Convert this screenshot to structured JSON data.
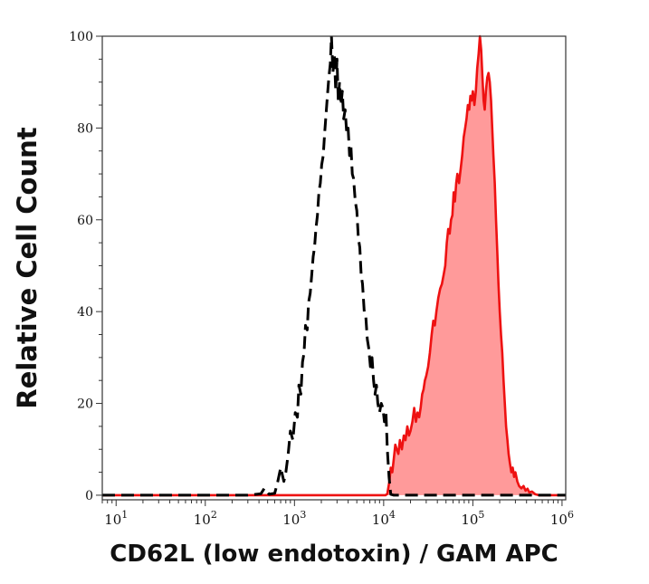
{
  "chart_data": {
    "type": "area",
    "xlabel": "CD62L (low endotoxin) / GAM APC",
    "ylabel": "Relative Cell Count",
    "x_scale": "log",
    "xlim": [
      7,
      1100000
    ],
    "ylim": [
      -1,
      100
    ],
    "x_ticks": [
      {
        "value": 10,
        "base": "10",
        "exp": "1"
      },
      {
        "value": 100,
        "base": "10",
        "exp": "2"
      },
      {
        "value": 1000,
        "base": "10",
        "exp": "3"
      },
      {
        "value": 10000,
        "base": "10",
        "exp": "4"
      },
      {
        "value": 100000,
        "base": "10",
        "exp": "5"
      },
      {
        "value": 1000000,
        "base": "10",
        "exp": "6"
      }
    ],
    "y_ticks": [
      "0",
      "20",
      "40",
      "60",
      "80",
      "100"
    ],
    "grid": false,
    "series": [
      {
        "style": "dashed-outline",
        "color": "#000000",
        "points": [
          [
            7,
            0
          ],
          [
            300,
            0
          ],
          [
            420,
            0.3
          ],
          [
            460,
            1.5
          ],
          [
            520,
            0.2
          ],
          [
            600,
            0.4
          ],
          [
            650,
            3
          ],
          [
            700,
            6
          ],
          [
            760,
            3
          ],
          [
            800,
            5
          ],
          [
            850,
            9
          ],
          [
            900,
            14
          ],
          [
            960,
            12
          ],
          [
            1020,
            18
          ],
          [
            1080,
            17
          ],
          [
            1120,
            24
          ],
          [
            1180,
            22
          ],
          [
            1230,
            29
          ],
          [
            1280,
            31
          ],
          [
            1330,
            37
          ],
          [
            1390,
            36
          ],
          [
            1440,
            42
          ],
          [
            1500,
            44
          ],
          [
            1560,
            48
          ],
          [
            1620,
            52
          ],
          [
            1680,
            54
          ],
          [
            1740,
            58
          ],
          [
            1810,
            61
          ],
          [
            1880,
            66
          ],
          [
            1950,
            68
          ],
          [
            2020,
            72
          ],
          [
            2100,
            74
          ],
          [
            2180,
            79
          ],
          [
            2260,
            83
          ],
          [
            2340,
            87
          ],
          [
            2430,
            91
          ],
          [
            2520,
            94
          ],
          [
            2600,
            100
          ],
          [
            2700,
            92
          ],
          [
            2800,
            96
          ],
          [
            2900,
            88
          ],
          [
            3000,
            95
          ],
          [
            3100,
            86
          ],
          [
            3200,
            90
          ],
          [
            3320,
            85
          ],
          [
            3440,
            88
          ],
          [
            3560,
            82
          ],
          [
            3700,
            84
          ],
          [
            3850,
            79
          ],
          [
            4000,
            80
          ],
          [
            4150,
            74
          ],
          [
            4300,
            76
          ],
          [
            4450,
            70
          ],
          [
            4600,
            69
          ],
          [
            4800,
            64
          ],
          [
            5000,
            62
          ],
          [
            5200,
            56
          ],
          [
            5400,
            54
          ],
          [
            5600,
            48
          ],
          [
            5800,
            46
          ],
          [
            6050,
            40
          ],
          [
            6300,
            39
          ],
          [
            6550,
            34
          ],
          [
            6800,
            32
          ],
          [
            7100,
            28
          ],
          [
            7400,
            30
          ],
          [
            7700,
            25
          ],
          [
            8000,
            22
          ],
          [
            8300,
            24
          ],
          [
            8600,
            20
          ],
          [
            9000,
            18
          ],
          [
            9400,
            20
          ],
          [
            9800,
            19
          ],
          [
            10200,
            16
          ],
          [
            10600,
            18
          ],
          [
            11000,
            10
          ],
          [
            11500,
            4
          ],
          [
            12000,
            0.2
          ],
          [
            13000,
            0
          ],
          [
            1100000,
            0
          ]
        ]
      },
      {
        "style": "filled",
        "color": "#ee1111",
        "fill": "#ff9a9a",
        "points": [
          [
            7,
            0
          ],
          [
            10500,
            0
          ],
          [
            11000,
            0.3
          ],
          [
            11600,
            3
          ],
          [
            12000,
            6
          ],
          [
            12500,
            5
          ],
          [
            13000,
            8
          ],
          [
            13500,
            11
          ],
          [
            14000,
            10
          ],
          [
            14600,
            9
          ],
          [
            15200,
            12
          ],
          [
            16000,
            10
          ],
          [
            16800,
            13
          ],
          [
            17600,
            12
          ],
          [
            18400,
            15
          ],
          [
            19200,
            13
          ],
          [
            20000,
            14
          ],
          [
            21000,
            16
          ],
          [
            22000,
            19
          ],
          [
            23000,
            16
          ],
          [
            24000,
            18
          ],
          [
            25000,
            17
          ],
          [
            26000,
            19
          ],
          [
            27000,
            22
          ],
          [
            28000,
            23
          ],
          [
            29000,
            25
          ],
          [
            30000,
            26
          ],
          [
            31500,
            28
          ],
          [
            33000,
            31
          ],
          [
            34500,
            35
          ],
          [
            36000,
            38
          ],
          [
            37500,
            37
          ],
          [
            39000,
            40
          ],
          [
            41000,
            43
          ],
          [
            43000,
            45
          ],
          [
            45000,
            46
          ],
          [
            47000,
            48
          ],
          [
            49000,
            50
          ],
          [
            51000,
            55
          ],
          [
            53000,
            58
          ],
          [
            55000,
            57
          ],
          [
            57000,
            60
          ],
          [
            59000,
            61
          ],
          [
            61000,
            66
          ],
          [
            63000,
            64
          ],
          [
            65000,
            68
          ],
          [
            67000,
            70
          ],
          [
            70000,
            68
          ],
          [
            73000,
            71
          ],
          [
            76000,
            74
          ],
          [
            79000,
            78
          ],
          [
            82000,
            80
          ],
          [
            85000,
            82
          ],
          [
            88000,
            85
          ],
          [
            91000,
            84
          ],
          [
            94000,
            87
          ],
          [
            97000,
            86
          ],
          [
            100000,
            88
          ],
          [
            104000,
            85
          ],
          [
            108000,
            88
          ],
          [
            112000,
            93
          ],
          [
            116000,
            96
          ],
          [
            120000,
            100
          ],
          [
            124000,
            97
          ],
          [
            128000,
            91
          ],
          [
            132000,
            86
          ],
          [
            136000,
            84
          ],
          [
            140000,
            88
          ],
          [
            145000,
            91
          ],
          [
            150000,
            92
          ],
          [
            155000,
            90
          ],
          [
            160000,
            86
          ],
          [
            165000,
            80
          ],
          [
            170000,
            74
          ],
          [
            176000,
            68
          ],
          [
            182000,
            60
          ],
          [
            188000,
            53
          ],
          [
            194000,
            46
          ],
          [
            200000,
            40
          ],
          [
            207000,
            35
          ],
          [
            214000,
            31
          ],
          [
            221000,
            25
          ],
          [
            228000,
            20
          ],
          [
            236000,
            15
          ],
          [
            244000,
            12
          ],
          [
            252000,
            9
          ],
          [
            260000,
            7
          ],
          [
            270000,
            5
          ],
          [
            280000,
            6
          ],
          [
            290000,
            4
          ],
          [
            300000,
            5
          ],
          [
            315000,
            3
          ],
          [
            330000,
            2
          ],
          [
            350000,
            1.5
          ],
          [
            370000,
            2
          ],
          [
            390000,
            1
          ],
          [
            410000,
            1.4
          ],
          [
            430000,
            0.6
          ],
          [
            460000,
            0.8
          ],
          [
            500000,
            0.2
          ],
          [
            550000,
            0
          ],
          [
            1100000,
            0
          ]
        ]
      }
    ]
  }
}
